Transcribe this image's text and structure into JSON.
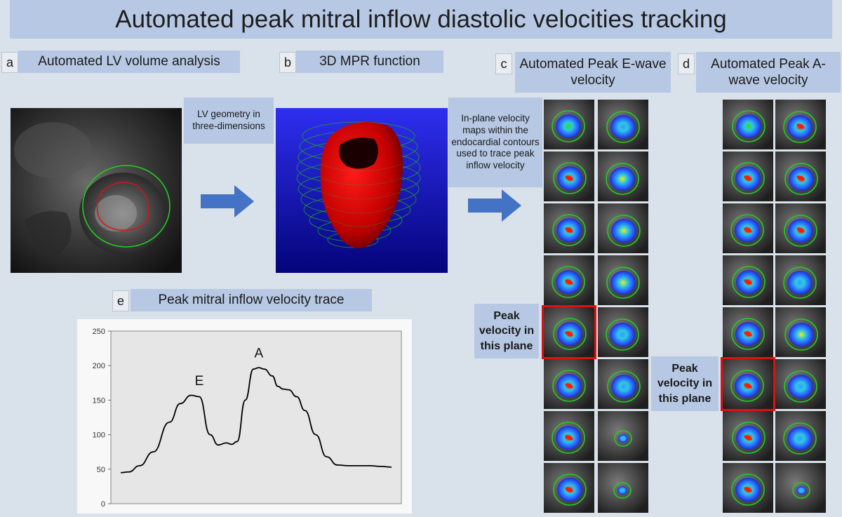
{
  "title": "Automated peak mitral inflow diastolic velocities tracking",
  "panels": {
    "a": {
      "letter": "a",
      "label": "Automated LV volume analysis"
    },
    "b": {
      "letter": "b",
      "label": "3D MPR function"
    },
    "c": {
      "letter": "c",
      "label": "Automated Peak E-wave velocity"
    },
    "d": {
      "letter": "d",
      "label": "Automated Peak A-wave velocity"
    },
    "e": {
      "letter": "e",
      "label": "Peak mitral inflow velocity trace"
    }
  },
  "notes": {
    "geometry": "LV geometry in three-dimensions",
    "inplane": "In-plane velocity maps within the endocardial contours used to trace peak inflow velocity",
    "peak_c": "Peak velocity in this plane",
    "peak_d": "Peak velocity in this plane"
  },
  "colors": {
    "background": "#d9e1ea",
    "banner": "#b7c8e4",
    "arrow": "#4472c4",
    "highlight": "#e01010",
    "contour_green": "#22cc22",
    "contour_red": "#dd1111"
  },
  "icons": [
    "right-arrow-icon"
  ],
  "chart_data": {
    "type": "line",
    "title": "",
    "xlabel": "",
    "ylabel": "",
    "ylim": [
      0,
      250
    ],
    "yticks": [
      0,
      50,
      100,
      150,
      200,
      250
    ],
    "grid": false,
    "legend": "none",
    "x": [
      0,
      3,
      7,
      12,
      18,
      22,
      26,
      29,
      33,
      36,
      39,
      41,
      43,
      46,
      49,
      51,
      53,
      56,
      58,
      60,
      62,
      65,
      68,
      72,
      76,
      80,
      84,
      88,
      92,
      96,
      100
    ],
    "series": [
      {
        "values": [
          45,
          46,
          55,
          75,
          118,
          145,
          157,
          155,
          100,
          85,
          88,
          86,
          90,
          150,
          195,
          197,
          195,
          185,
          170,
          166,
          165,
          155,
          135,
          100,
          68,
          56,
          55,
          55,
          55,
          54,
          53
        ]
      }
    ],
    "annotations": [
      {
        "text": "E",
        "x": 29,
        "y": 172
      },
      {
        "text": "A",
        "x": 51,
        "y": 212
      }
    ]
  }
}
